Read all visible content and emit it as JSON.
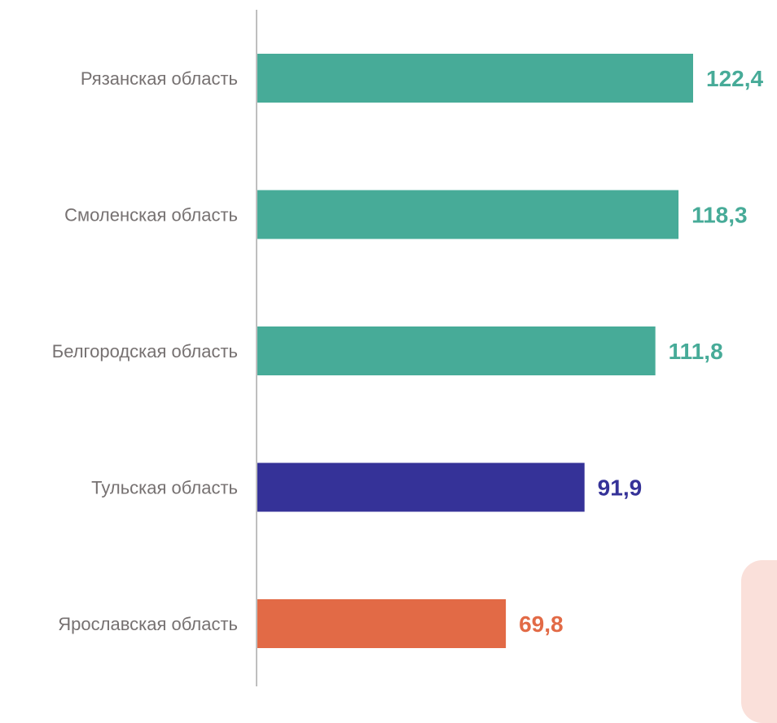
{
  "chart_data": {
    "type": "bar",
    "orientation": "horizontal",
    "categories": [
      "Рязанская область",
      "Смоленская область",
      "Белгородская область",
      "Тульская область",
      "Ярославская область"
    ],
    "values": [
      122.4,
      118.3,
      111.8,
      91.9,
      69.8
    ],
    "value_labels": [
      "122,4",
      "118,3",
      "111,8",
      "91,9",
      "69,8"
    ],
    "bar_colors": [
      "#47ab98",
      "#47ab98",
      "#47ab98",
      "#353298",
      "#e26a46"
    ],
    "title": "",
    "xlabel": "",
    "ylabel": "",
    "xlim": [
      0,
      140
    ],
    "grid": false,
    "legend": "none"
  },
  "colors": {
    "category_text": "#767171",
    "axis_line": "#bfbfbf",
    "decor_panel": "#fae0da"
  }
}
